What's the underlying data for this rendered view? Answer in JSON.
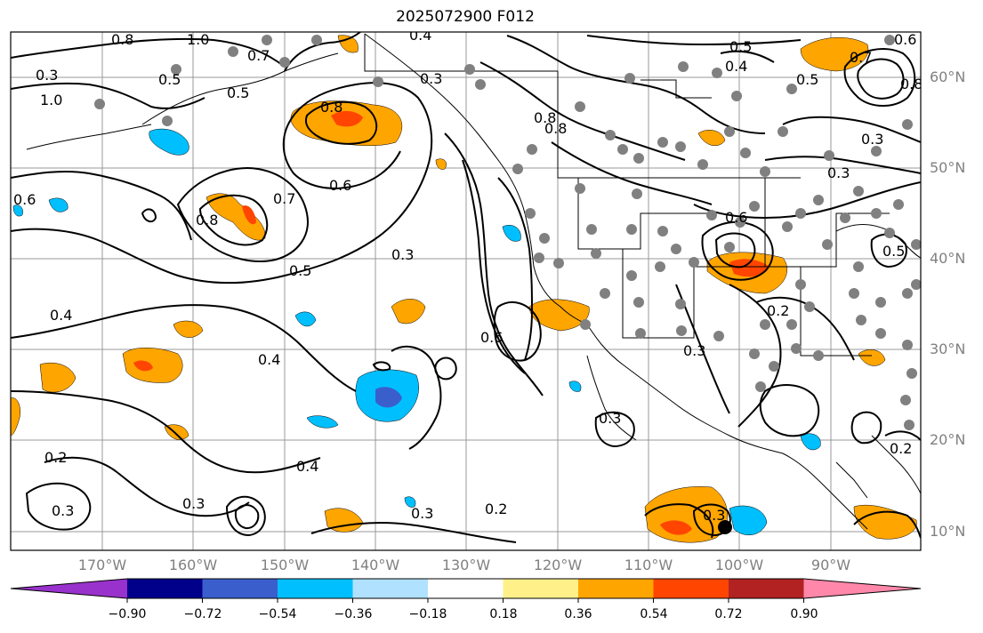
{
  "title": "2025072900 F012",
  "lat_labels": [
    "60°N",
    "50°N",
    "40°N",
    "30°N",
    "20°N",
    "10°N"
  ],
  "lon_labels": [
    "170°W",
    "160°W",
    "150°W",
    "140°W",
    "130°W",
    "120°W",
    "110°W",
    "100°W",
    "90°W"
  ],
  "colorbar": {
    "ticks": [
      "−0.90",
      "−0.72",
      "−0.54",
      "−0.36",
      "−0.18",
      "0.18",
      "0.36",
      "0.54",
      "0.72",
      "0.90"
    ],
    "colors": [
      "#9932cc",
      "#00008b",
      "#3a5fcd",
      "#00bfff",
      "#b0e2ff",
      "#ffffff",
      "#fff08a",
      "#ffa500",
      "#ff4500",
      "#b22222",
      "#ff88aa"
    ]
  },
  "contour_labels": [
    "0.8",
    "1.0",
    "0.7",
    "0.5",
    "0.3",
    "0.4",
    "0.8",
    "0.3",
    "0.6",
    "0.8",
    "0.7",
    "0.5",
    "0.3",
    "0.4",
    "0.2",
    "0.3",
    "0.4",
    "0.6",
    "0.3",
    "0.8",
    "0.5",
    "0.4",
    "0.3",
    "0.2",
    "0.3",
    "0.3",
    "0.2",
    "0.6",
    "0.5",
    "0.8",
    "1.0",
    "0.5",
    "0.3",
    "0.6",
    "0.8",
    "0.5",
    "0.4",
    "0.3",
    "0.2",
    "0.3",
    "0.7",
    "0.6"
  ]
}
